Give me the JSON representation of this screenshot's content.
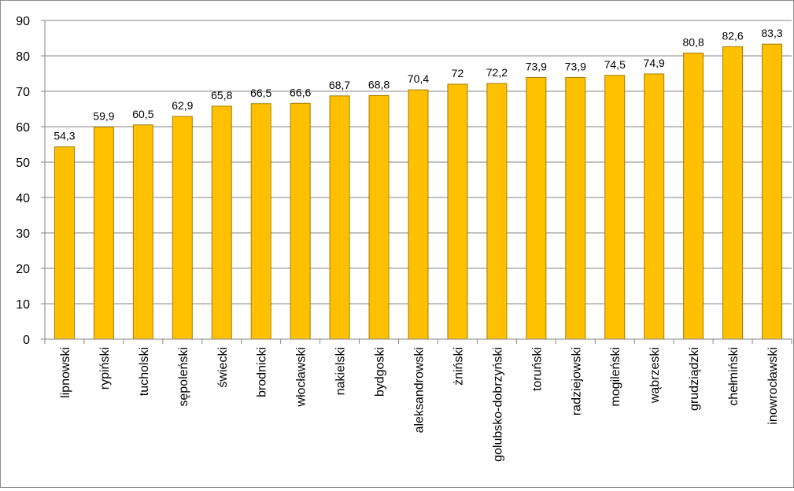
{
  "chart_data": {
    "type": "bar",
    "title": "",
    "xlabel": "",
    "ylabel": "",
    "ylim": [
      0,
      90
    ],
    "yticks": [
      0,
      10,
      20,
      30,
      40,
      50,
      60,
      70,
      80,
      90
    ],
    "grid": true,
    "legend": "none",
    "bar_color": "#FFC000",
    "bar_edge_color": "#A67C00",
    "categories": [
      "lipnowski",
      "rypiński",
      "tucholski",
      "sępoleński",
      "świecki",
      "brodnicki",
      "włocławski",
      "nakielski",
      "bydgoski",
      "aleksandrowski",
      "żniński",
      "golubsko-dobrzyński",
      "toruński",
      "radziejowski",
      "mogileński",
      "wąbrzeski",
      "grudziądzki",
      "chełmiński",
      "inowrocławski"
    ],
    "values": [
      54.3,
      59.9,
      60.5,
      62.9,
      65.8,
      66.5,
      66.6,
      68.7,
      68.8,
      70.4,
      72,
      72.2,
      73.9,
      73.9,
      74.5,
      74.9,
      80.8,
      82.6,
      83.3
    ],
    "data_labels": [
      "54,3",
      "59,9",
      "60,5",
      "62,9",
      "65,8",
      "66,5",
      "66,6",
      "68,7",
      "68,8",
      "70,4",
      "72",
      "72,2",
      "73,9",
      "73,9",
      "74,5",
      "74,9",
      "80,8",
      "82,6",
      "83,3"
    ]
  }
}
